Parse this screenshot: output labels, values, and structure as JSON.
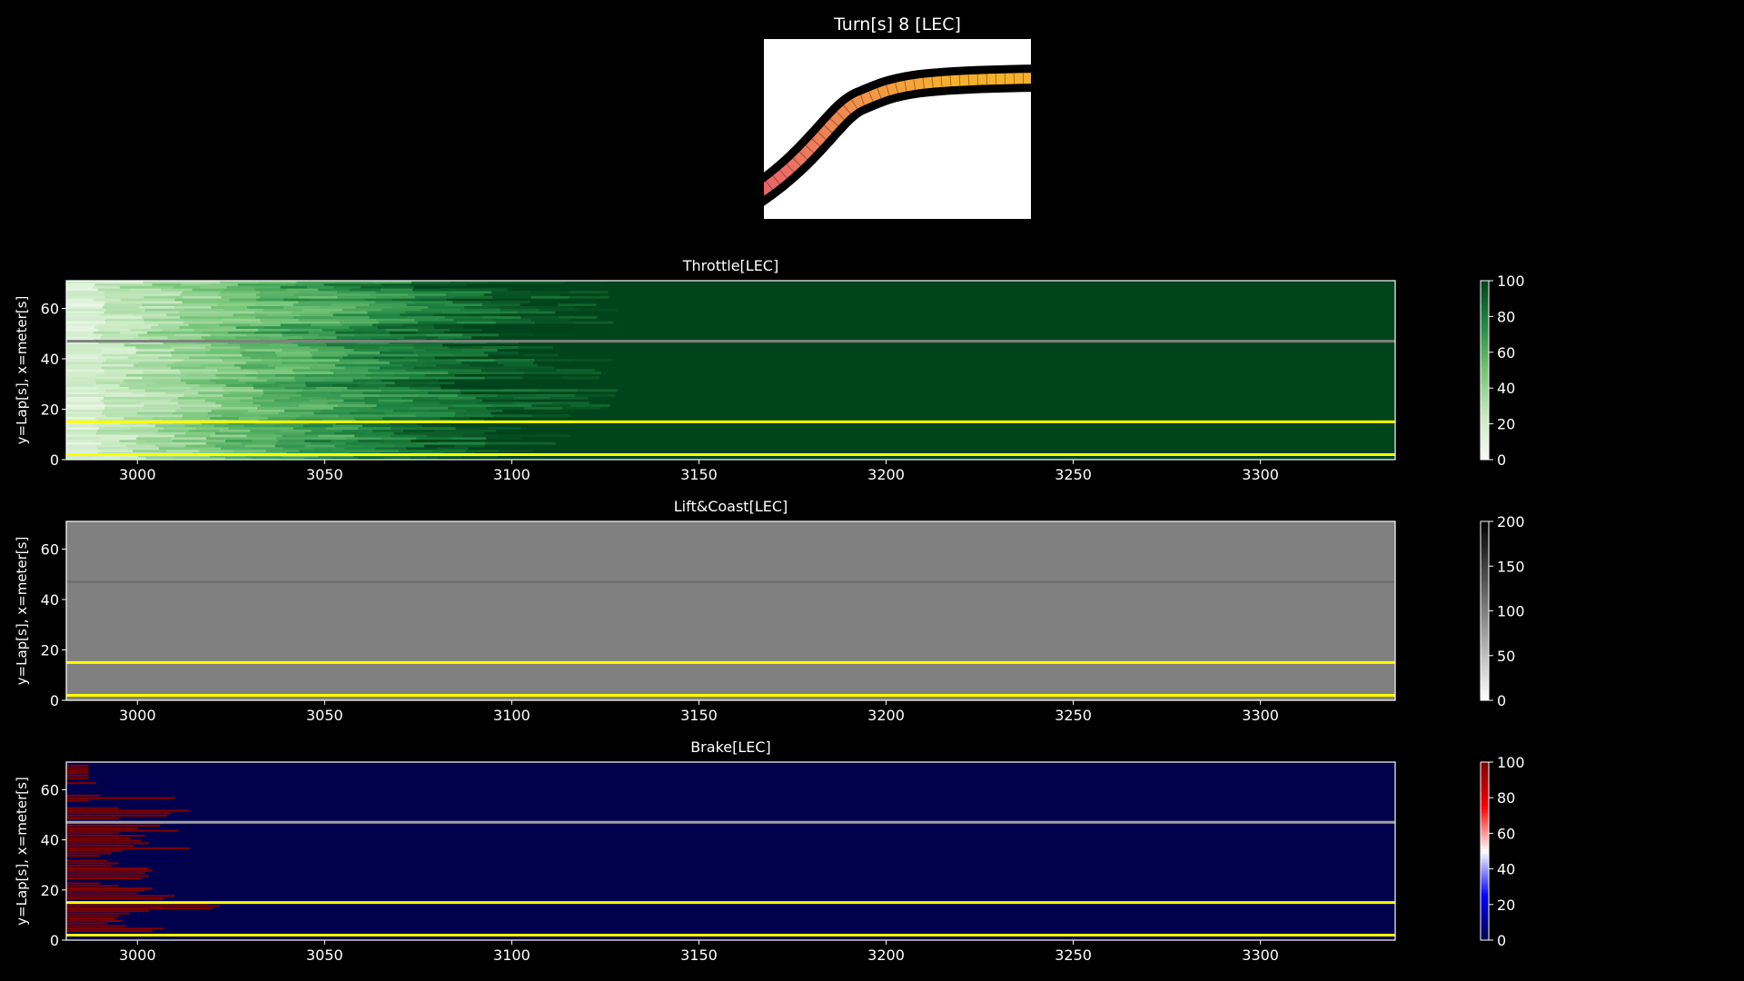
{
  "figure_title": "Turn[s] 8 [LEC]",
  "track_map": {
    "segment_colors": [
      "#e8646a",
      "#f2924a",
      "#f7b02c"
    ]
  },
  "chart_data": [
    {
      "type": "heatmap",
      "title": "Throttle[LEC]",
      "ylabel": "y=Lap[s], x=meter[s]",
      "xlabel": "",
      "xlim": [
        2981,
        3336
      ],
      "ylim": [
        0,
        71
      ],
      "xticks": [
        "3000",
        "3050",
        "3100",
        "3150",
        "3200",
        "3250",
        "3300"
      ],
      "yticks": [
        "0",
        "20",
        "40",
        "60"
      ],
      "colorbar": {
        "colormap": "greens",
        "range": [
          0,
          100
        ],
        "ticks": [
          "0",
          "20",
          "40",
          "60",
          "80",
          "100"
        ]
      },
      "background_value": 100,
      "ramp": {
        "start": 2981,
        "full_by_approx": 3105,
        "start_value": 10,
        "end_value": 100
      },
      "reference_lines": [
        {
          "lap": 47,
          "color": "#808080"
        },
        {
          "lap": 15,
          "color": "#ffff00"
        },
        {
          "lap": 2,
          "color": "#ffff00"
        }
      ]
    },
    {
      "type": "heatmap",
      "title": "Lift&Coast[LEC]",
      "ylabel": "y=Lap[s], x=meter[s]",
      "xlabel": "",
      "xlim": [
        2981,
        3336
      ],
      "ylim": [
        0,
        71
      ],
      "xticks": [
        "3000",
        "3050",
        "3100",
        "3150",
        "3200",
        "3250",
        "3300"
      ],
      "yticks": [
        "0",
        "20",
        "40",
        "60"
      ],
      "colorbar": {
        "colormap": "greys",
        "range": [
          0,
          200
        ],
        "ticks": [
          "0",
          "50",
          "100",
          "150",
          "200"
        ]
      },
      "background_value": 100,
      "reference_lines": [
        {
          "lap": 47,
          "color": "#707070"
        },
        {
          "lap": 15,
          "color": "#ffff00"
        },
        {
          "lap": 2,
          "color": "#ffff00"
        }
      ]
    },
    {
      "type": "heatmap",
      "title": "Brake[LEC]",
      "ylabel": "y=Lap[s], x=meter[s]",
      "xlabel": "",
      "xlim": [
        2981,
        3336
      ],
      "ylim": [
        0,
        71
      ],
      "xticks": [
        "3000",
        "3050",
        "3100",
        "3150",
        "3200",
        "3250",
        "3300"
      ],
      "yticks": [
        "0",
        "20",
        "40",
        "60"
      ],
      "colorbar": {
        "colormap": "seismic",
        "range": [
          0,
          100
        ],
        "ticks": [
          "0",
          "20",
          "40",
          "60",
          "80",
          "100"
        ]
      },
      "background_value": 0,
      "brake_runs": [
        {
          "lap": 69,
          "end": 2987
        },
        {
          "lap": 68,
          "end": 2987
        },
        {
          "lap": 67,
          "end": 2987
        },
        {
          "lap": 66,
          "end": 2987
        },
        {
          "lap": 65,
          "end": 2987
        },
        {
          "lap": 64,
          "end": 2987
        },
        {
          "lap": 62,
          "end": 2989
        },
        {
          "lap": 57,
          "end": 2990
        },
        {
          "lap": 56,
          "end": 3010
        },
        {
          "lap": 55,
          "end": 2987
        },
        {
          "lap": 52,
          "end": 2995
        },
        {
          "lap": 51,
          "end": 3014
        },
        {
          "lap": 50,
          "end": 3009
        },
        {
          "lap": 49,
          "end": 3008
        },
        {
          "lap": 48,
          "end": 2995
        },
        {
          "lap": 46,
          "end": 3007
        },
        {
          "lap": 45,
          "end": 3006
        },
        {
          "lap": 44,
          "end": 3000
        },
        {
          "lap": 43,
          "end": 3011
        },
        {
          "lap": 42,
          "end": 2995
        },
        {
          "lap": 41,
          "end": 3002
        },
        {
          "lap": 40,
          "end": 2998
        },
        {
          "lap": 39,
          "end": 3001
        },
        {
          "lap": 38,
          "end": 3003
        },
        {
          "lap": 37,
          "end": 2999
        },
        {
          "lap": 36,
          "end": 3014
        },
        {
          "lap": 35,
          "end": 2996
        },
        {
          "lap": 34,
          "end": 2993
        },
        {
          "lap": 33,
          "end": 2990
        },
        {
          "lap": 31,
          "end": 2992
        },
        {
          "lap": 30,
          "end": 2995
        },
        {
          "lap": 29,
          "end": 2993
        },
        {
          "lap": 28,
          "end": 3003
        },
        {
          "lap": 27,
          "end": 3004
        },
        {
          "lap": 26,
          "end": 3002
        },
        {
          "lap": 25,
          "end": 3003
        },
        {
          "lap": 24,
          "end": 3001
        },
        {
          "lap": 22,
          "end": 2990
        },
        {
          "lap": 21,
          "end": 2995
        },
        {
          "lap": 20,
          "end": 3004
        },
        {
          "lap": 19,
          "end": 3002
        },
        {
          "lap": 18,
          "end": 3000
        },
        {
          "lap": 17,
          "end": 3010
        },
        {
          "lap": 16,
          "end": 3007
        },
        {
          "lap": 14,
          "end": 3019
        },
        {
          "lap": 13,
          "end": 3022
        },
        {
          "lap": 12,
          "end": 3020
        },
        {
          "lap": 11,
          "end": 3003
        },
        {
          "lap": 10,
          "end": 2998
        },
        {
          "lap": 9,
          "end": 2995
        },
        {
          "lap": 8,
          "end": 2994
        },
        {
          "lap": 7,
          "end": 2996
        },
        {
          "lap": 6,
          "end": 2992
        },
        {
          "lap": 5,
          "end": 2997
        },
        {
          "lap": 4,
          "end": 3007
        },
        {
          "lap": 3,
          "end": 3004
        }
      ],
      "reference_lines": [
        {
          "lap": 47,
          "color": "#a0a0a0"
        },
        {
          "lap": 15,
          "color": "#ffff00"
        },
        {
          "lap": 2,
          "color": "#ffff00"
        }
      ]
    }
  ]
}
